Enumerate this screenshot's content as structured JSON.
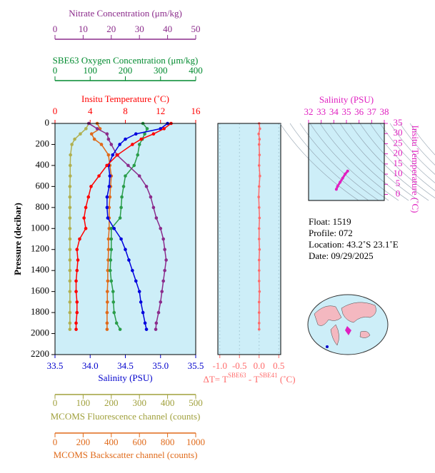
{
  "chart_data": [
    {
      "type": "profile",
      "ylabel": "Pressure (decibar)",
      "ylim": [
        2200,
        0
      ],
      "yticks": [
        0,
        200,
        400,
        600,
        800,
        1000,
        1200,
        1400,
        1600,
        1800,
        2000,
        2200
      ],
      "y": [
        0,
        50,
        100,
        150,
        200,
        300,
        400,
        500,
        600,
        700,
        800,
        900,
        1000,
        1100,
        1200,
        1300,
        1400,
        1500,
        1600,
        1700,
        1800,
        1900,
        1960
      ],
      "background": "#cdeef8",
      "axes": [
        {
          "label": "Nitrate Concentration (μm/kg)",
          "color": "#8b2b8b",
          "xlim": [
            0,
            50
          ],
          "xticks": [
            0,
            10,
            20,
            30,
            40,
            50
          ]
        },
        {
          "label": "SBE63 Oxygen Concentration (μm/kg)",
          "color": "#008a2e",
          "xlim": [
            0,
            400
          ],
          "xticks": [
            0,
            100,
            200,
            300,
            400
          ]
        },
        {
          "label": "Insitu Temperature (˚C)",
          "color": "#ff0000",
          "xlim": [
            0,
            16
          ],
          "xticks": [
            0,
            4,
            8,
            12,
            16
          ]
        },
        {
          "label": "Salinity (PSU)",
          "color": "#0000cc",
          "xlim": [
            33.5,
            35.5
          ],
          "xticks": [
            33.5,
            {
              "value": 34,
              "label": "34.0"
            },
            34.5,
            {
              "value": 35,
              "label": "35.0"
            },
            35.5
          ]
        },
        {
          "label": "MCOMS Fluorescence channel (counts)",
          "color": "#a0a03c",
          "xlim": [
            0,
            500
          ],
          "xticks": [
            0,
            100,
            200,
            300,
            400,
            500
          ]
        },
        {
          "label": "MCOMS Backscatter channel (counts)",
          "color": "#e06a1a",
          "xlim": [
            0,
            1000
          ],
          "xticks": [
            0,
            200,
            400,
            600,
            800,
            1000
          ]
        }
      ],
      "series": [
        {
          "axis": 4,
          "color": "#b0b050",
          "markers": true,
          "values": [
            120,
            110,
            90,
            70,
            60,
            55,
            54,
            54,
            53,
            53,
            53,
            53,
            53,
            53,
            53,
            53,
            53,
            53,
            53,
            53,
            53,
            53,
            53
          ]
        },
        {
          "axis": 5,
          "color": "#e06a1a",
          "markers": true,
          "values": [
            300,
            320,
            260,
            280,
            330,
            380,
            390,
            400,
            395,
            390,
            385,
            385,
            385,
            380,
            380,
            378,
            375,
            375,
            372,
            372,
            370,
            370,
            370
          ]
        },
        {
          "axis": 1,
          "color": "#2a9d4a",
          "markers": true,
          "values": [
            250,
            262,
            255,
            248,
            240,
            235,
            225,
            200,
            195,
            190,
            188,
            185,
            160,
            160,
            160,
            158,
            157,
            160,
            165,
            166,
            168,
            175,
            185
          ]
        },
        {
          "axis": 0,
          "color": "#8b2b8b",
          "markers": true,
          "values": [
            12,
            15,
            18.5,
            19,
            20,
            22,
            26,
            30,
            32.5,
            34,
            35,
            36,
            37.5,
            38.5,
            39,
            39.5,
            39,
            38.5,
            38,
            37.5,
            36.8,
            36,
            35.8
          ]
        },
        {
          "axis": 3,
          "color": "#0000dd",
          "markers": true,
          "values": [
            35.1,
            35.0,
            34.65,
            34.5,
            34.42,
            34.32,
            34.26,
            34.28,
            34.27,
            34.24,
            34.24,
            34.25,
            34.34,
            34.44,
            34.5,
            34.55,
            34.6,
            34.65,
            34.7,
            34.72,
            34.75,
            34.78,
            34.8
          ]
        },
        {
          "axis": 2,
          "color": "#ff0000",
          "markers": true,
          "values": [
            13.2,
            12.4,
            11.2,
            9.8,
            8.8,
            7.1,
            5.9,
            5.0,
            4.1,
            3.8,
            3.5,
            3.3,
            3.5,
            2.8,
            2.5,
            2.6,
            2.5,
            2.4,
            2.4,
            2.5,
            2.5,
            2.4,
            2.4
          ]
        }
      ]
    },
    {
      "type": "delta",
      "xlabel": [
        "ΔT= T",
        "SBE63",
        " - T",
        "SBE41",
        " (˚C)"
      ],
      "color": "#ff6b6b",
      "xlim": [
        -1.05,
        0.55
      ],
      "xticks": [
        {
          "value": -1,
          "label": "-1.0"
        },
        -0.5,
        {
          "value": 0,
          "label": "0.0"
        },
        0.5
      ],
      "ylim": [
        2200,
        0
      ],
      "y": [
        0,
        50,
        100,
        150,
        200,
        300,
        400,
        500,
        600,
        700,
        800,
        900,
        1000,
        1100,
        1200,
        1300,
        1400,
        1500,
        1600,
        1700,
        1800,
        1900,
        1960
      ],
      "values": [
        0.0,
        0.02,
        -0.01,
        0.01,
        0.0,
        0.01,
        0.0,
        0.02,
        0.0,
        -0.01,
        0.0,
        0.01,
        0.0,
        0.0,
        0.01,
        0.0,
        0.0,
        0.0,
        0.01,
        0.0,
        0.0,
        0.0,
        0.0
      ]
    },
    {
      "type": "ts",
      "xlabel": "Salinity (PSU)",
      "ylabel": "Insitu Temperature (˚C)",
      "color": "#e020c0",
      "xlim": [
        32,
        38
      ],
      "xticks": [
        32,
        33,
        34,
        35,
        36,
        37,
        38
      ],
      "ylim": [
        -3,
        35
      ],
      "yticks": [
        0,
        5,
        10,
        15,
        20,
        25,
        30,
        35
      ],
      "x": [
        34.2,
        34.3,
        34.5,
        34.7,
        34.9,
        35.1
      ],
      "values": [
        2.5,
        4,
        6,
        8,
        10,
        11.5
      ]
    }
  ],
  "info": [
    "Float:  1519",
    "Profile:  072",
    "Location:  43.2˚S  23.1˚E",
    "Date:  09/29/2025"
  ]
}
